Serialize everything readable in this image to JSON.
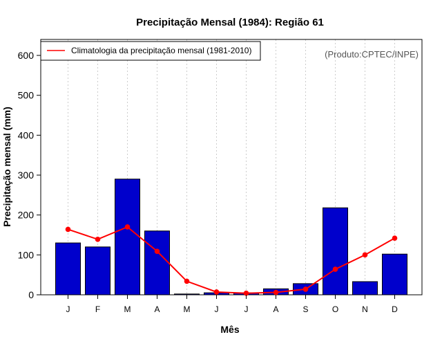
{
  "chart_data": {
    "type": "bar",
    "title": "Precipitação Mensal (1984): Região 61",
    "xlabel": "Mês",
    "ylabel": "Precipitação mensal (mm)",
    "categories": [
      "J",
      "F",
      "M",
      "A",
      "M",
      "J",
      "J",
      "A",
      "S",
      "O",
      "N",
      "D"
    ],
    "ylim": [
      0,
      640
    ],
    "yticks": [
      0,
      100,
      200,
      300,
      400,
      500,
      600
    ],
    "grid": "vertical dotted",
    "series": [
      {
        "name": "Precipitação mensal (1984)",
        "type": "bar",
        "color": "#0000cc",
        "values": [
          130,
          120,
          290,
          160,
          2,
          5,
          5,
          15,
          28,
          218,
          33,
          102
        ]
      },
      {
        "name": "Climatologia da precipitação mensal (1981-2010)",
        "type": "line",
        "color": "#ff0000",
        "values": [
          164,
          139,
          170,
          109,
          34,
          7,
          4,
          6,
          14,
          64,
          100,
          142
        ]
      }
    ],
    "legend": {
      "entries": [
        "Climatologia da precipitação mensal (1981-2010)"
      ],
      "position": "top-left"
    },
    "annotation": "(Produto:CPTEC/INPE)"
  }
}
